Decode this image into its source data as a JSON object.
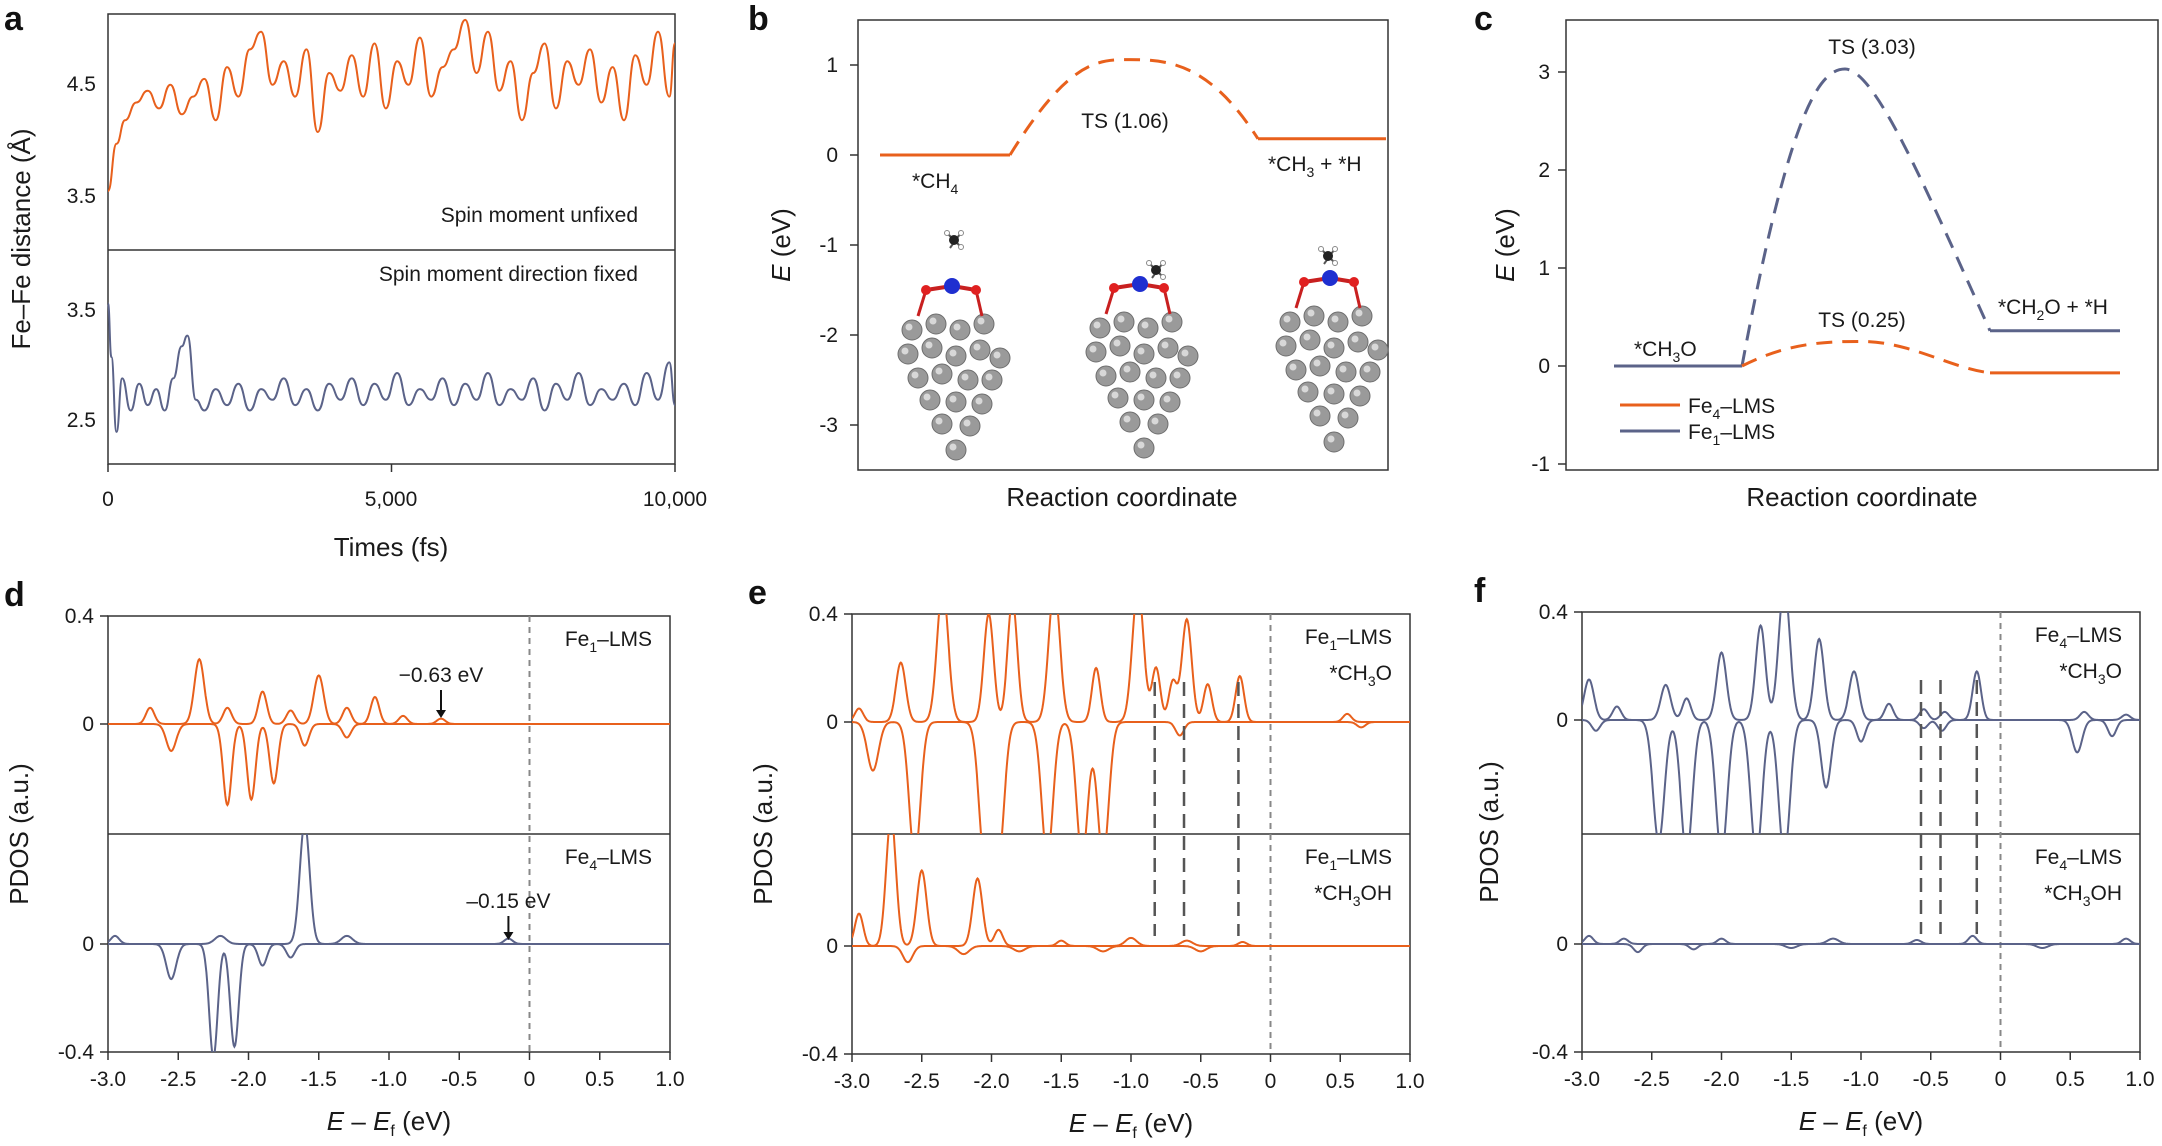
{
  "colors": {
    "fe1": "#E8601C",
    "fe4": "#5B6389",
    "zero_line": "#888888",
    "mark_line": "#555555"
  },
  "chart_data": [
    {
      "id": "a",
      "type": "line",
      "letter": "a",
      "ylabel": "Fe–Fe distance (Å)",
      "xlabel": "Times (fs)",
      "xlim": [
        0,
        10000
      ],
      "x_ticks": [
        "0",
        "5,000",
        "10,000"
      ],
      "top": {
        "label": "Spin moment unfixed",
        "ylim": [
          3.0,
          5.0
        ],
        "y_ticks": [
          "3.5",
          "4.5"
        ],
        "series": {
          "name": "Spin moment unfixed",
          "color": "orange",
          "x": [
            0,
            150,
            300,
            500,
            700,
            900,
            1100,
            1300,
            1500,
            1700,
            1900,
            2100,
            2300,
            2500,
            2700,
            2900,
            3100,
            3300,
            3500,
            3700,
            3900,
            4100,
            4300,
            4500,
            4700,
            4900,
            5100,
            5300,
            5500,
            5700,
            5900,
            6100,
            6300,
            6500,
            6700,
            6900,
            7100,
            7300,
            7500,
            7700,
            7900,
            8100,
            8300,
            8500,
            8700,
            8900,
            9100,
            9300,
            9500,
            9700,
            9900,
            10000
          ],
          "y": [
            3.5,
            3.9,
            4.1,
            4.25,
            4.35,
            4.2,
            4.4,
            4.15,
            4.3,
            4.45,
            4.1,
            4.55,
            4.3,
            4.7,
            4.85,
            4.4,
            4.6,
            4.3,
            4.7,
            4.0,
            4.5,
            4.35,
            4.65,
            4.3,
            4.75,
            4.2,
            4.6,
            4.4,
            4.8,
            4.3,
            4.55,
            4.7,
            4.95,
            4.5,
            4.85,
            4.35,
            4.6,
            4.1,
            4.5,
            4.75,
            4.2,
            4.6,
            4.4,
            4.7,
            4.25,
            4.55,
            4.1,
            4.65,
            4.4,
            4.85,
            4.3,
            4.75
          ]
        }
      },
      "bottom": {
        "label": "Spin moment direction fixed",
        "ylim": [
          2.0,
          4.0
        ],
        "y_ticks": [
          "2.5",
          "3.5"
        ],
        "series": {
          "name": "Spin moment direction fixed",
          "color": "blue",
          "x": [
            0,
            60,
            150,
            250,
            400,
            550,
            700,
            850,
            1000,
            1150,
            1300,
            1400,
            1550,
            1700,
            1900,
            2100,
            2300,
            2500,
            2700,
            2900,
            3100,
            3300,
            3500,
            3700,
            3900,
            4100,
            4300,
            4500,
            4700,
            4900,
            5100,
            5300,
            5500,
            5700,
            5900,
            6100,
            6300,
            6500,
            6700,
            6900,
            7100,
            7300,
            7500,
            7700,
            7900,
            8100,
            8300,
            8500,
            8700,
            8900,
            9100,
            9300,
            9500,
            9700,
            9900,
            10000
          ],
          "y": [
            3.5,
            3.0,
            2.3,
            2.8,
            2.5,
            2.75,
            2.55,
            2.7,
            2.5,
            2.8,
            3.1,
            3.2,
            2.6,
            2.5,
            2.7,
            2.55,
            2.75,
            2.5,
            2.7,
            2.6,
            2.8,
            2.55,
            2.7,
            2.5,
            2.75,
            2.6,
            2.8,
            2.55,
            2.75,
            2.6,
            2.85,
            2.55,
            2.7,
            2.6,
            2.8,
            2.55,
            2.75,
            2.6,
            2.85,
            2.55,
            2.7,
            2.6,
            2.8,
            2.5,
            2.75,
            2.6,
            2.85,
            2.55,
            2.7,
            2.6,
            2.75,
            2.55,
            2.85,
            2.6,
            2.95,
            2.55
          ]
        }
      }
    },
    {
      "id": "b",
      "type": "line",
      "letter": "b",
      "ylabel": "E (eV)",
      "ylabel_var": "E",
      "ylabel_unit": " (eV)",
      "xlabel": "Reaction coordinate",
      "ylim": [
        -3.5,
        1.5
      ],
      "y_ticks": [
        "1",
        "0",
        "-1",
        "-2",
        "-3"
      ],
      "labels": {
        "is": "*CH",
        "is_sub": "4",
        "ts": "TS (1.06)",
        "fs_a": "*CH",
        "fs_sub": "3",
        "fs_b": " + *H"
      },
      "series": [
        {
          "name": "Fe1-LMS",
          "color": "orange",
          "initial": 0,
          "ts": 1.06,
          "final": 0.18
        }
      ]
    },
    {
      "id": "c",
      "type": "line",
      "letter": "c",
      "ylabel": "E (eV)",
      "ylabel_var": "E",
      "ylabel_unit": " (eV)",
      "xlabel": "Reaction coordinate",
      "ylim": [
        -1,
        3.4
      ],
      "y_ticks": [
        "3",
        "2",
        "1",
        "0",
        "-1"
      ],
      "labels": {
        "is_a": "*CH",
        "is_sub": "3",
        "is_b": "O",
        "fs_a": "*CH",
        "fs_sub": "2",
        "fs_b": "O + *H",
        "ts_fe1": "TS (3.03)",
        "ts_fe4": "TS (0.25)"
      },
      "legend": [
        {
          "pre": "Fe",
          "sub": "4",
          "post": "–LMS",
          "color": "orange"
        },
        {
          "pre": "Fe",
          "sub": "1",
          "post": "–LMS",
          "color": "blue"
        }
      ],
      "series": [
        {
          "name": "Fe1-LMS",
          "color": "blue",
          "initial": 0,
          "ts": 3.03,
          "final": 0.36
        },
        {
          "name": "Fe4-LMS",
          "color": "orange",
          "initial": 0,
          "ts": 0.25,
          "final": -0.07
        }
      ]
    },
    {
      "id": "d",
      "type": "line",
      "letter": "d",
      "ylabel": "PDOS (a.u.)",
      "xlabel_var": "E",
      "xlabel_mid": " – ",
      "xlabel_var2": "E",
      "xlabel_sub": "f",
      "xlabel_unit": " (eV)",
      "xlim": [
        -3.0,
        1.0
      ],
      "x_ticks": [
        "-3.0",
        "-2.5",
        "-2.0",
        "-1.5",
        "-1.0",
        "-0.5",
        "0",
        "0.5",
        "1.0"
      ],
      "y_ticks": [
        "0.4",
        "0",
        "0",
        "-0.4"
      ],
      "top": {
        "label_pre": "Fe",
        "label_sub": "1",
        "label_post": "–LMS",
        "annotation": "−0.63 eV",
        "marker_x": -0.63,
        "peaks_up": [
          [
            -2.7,
            0.06,
            0.03
          ],
          [
            -2.35,
            0.24,
            0.035
          ],
          [
            -2.15,
            0.06,
            0.03
          ],
          [
            -1.9,
            0.12,
            0.03
          ],
          [
            -1.7,
            0.05,
            0.03
          ],
          [
            -1.5,
            0.18,
            0.035
          ],
          [
            -1.3,
            0.06,
            0.03
          ],
          [
            -1.1,
            0.1,
            0.03
          ],
          [
            -0.9,
            0.03,
            0.03
          ],
          [
            -0.63,
            0.02,
            0.03
          ]
        ],
        "peaks_down": [
          [
            -2.55,
            0.1,
            0.035
          ],
          [
            -2.15,
            0.3,
            0.03
          ],
          [
            -1.98,
            0.28,
            0.03
          ],
          [
            -1.82,
            0.22,
            0.03
          ],
          [
            -1.6,
            0.08,
            0.03
          ],
          [
            -1.3,
            0.05,
            0.03
          ]
        ]
      },
      "bottom": {
        "label_pre": "Fe",
        "label_sub": "4",
        "label_post": "–LMS",
        "annotation": "–0.15 eV",
        "marker_x": -0.15,
        "peaks_up": [
          [
            -2.95,
            0.03,
            0.03
          ],
          [
            -2.2,
            0.03,
            0.04
          ],
          [
            -1.6,
            0.45,
            0.035
          ],
          [
            -1.3,
            0.03,
            0.04
          ],
          [
            -0.15,
            0.02,
            0.03
          ]
        ],
        "peaks_down": [
          [
            -2.55,
            0.13,
            0.035
          ],
          [
            -2.25,
            0.42,
            0.03
          ],
          [
            -2.1,
            0.38,
            0.03
          ],
          [
            -1.9,
            0.08,
            0.03
          ],
          [
            -1.7,
            0.05,
            0.03
          ]
        ]
      }
    },
    {
      "id": "e",
      "type": "line",
      "letter": "e",
      "ylabel": "PDOS (a.u.)",
      "xlabel_var": "E",
      "xlabel_mid": " – ",
      "xlabel_var2": "E",
      "xlabel_sub": "f",
      "xlabel_unit": " (eV)",
      "xlim": [
        -3.0,
        1.0
      ],
      "x_ticks": [
        "-3.0",
        "-2.5",
        "-2.0",
        "-1.5",
        "-1.0",
        "-0.5",
        "0",
        "0.5",
        "1.0"
      ],
      "y_ticks": [
        "0.4",
        "0",
        "0",
        "-0.4"
      ],
      "dashed_x": [
        -0.83,
        -0.62,
        -0.23
      ],
      "top": {
        "label_pre": "Fe",
        "label_sub": "1",
        "label_post": "–LMS",
        "label2_pre": "*CH",
        "label2_sub": "3",
        "label2_post": "O",
        "peaks_up": [
          [
            -2.95,
            0.05,
            0.03
          ],
          [
            -2.65,
            0.22,
            0.035
          ],
          [
            -2.35,
            0.5,
            0.04
          ],
          [
            -2.02,
            0.4,
            0.035
          ],
          [
            -1.85,
            0.45,
            0.035
          ],
          [
            -1.55,
            0.5,
            0.04
          ],
          [
            -1.25,
            0.2,
            0.03
          ],
          [
            -0.95,
            0.5,
            0.04
          ],
          [
            -0.82,
            0.2,
            0.03
          ],
          [
            -0.7,
            0.15,
            0.03
          ],
          [
            -0.6,
            0.38,
            0.035
          ],
          [
            -0.45,
            0.14,
            0.03
          ],
          [
            -0.22,
            0.17,
            0.03
          ],
          [
            0.55,
            0.03,
            0.03
          ]
        ],
        "peaks_down": [
          [
            -2.85,
            0.18,
            0.04
          ],
          [
            -2.55,
            0.5,
            0.04
          ],
          [
            -2.05,
            0.5,
            0.04
          ],
          [
            -1.95,
            0.5,
            0.04
          ],
          [
            -1.6,
            0.5,
            0.04
          ],
          [
            -1.35,
            0.5,
            0.04
          ],
          [
            -1.2,
            0.5,
            0.04
          ],
          [
            -0.65,
            0.05,
            0.03
          ],
          [
            0.65,
            0.02,
            0.03
          ]
        ]
      },
      "bottom": {
        "label_pre": "Fe",
        "label_sub": "1",
        "label_post": "–LMS",
        "label2_pre": "*CH",
        "label2_sub": "3",
        "label2_post": "OH",
        "peaks_up": [
          [
            -2.95,
            0.12,
            0.03
          ],
          [
            -2.72,
            0.48,
            0.035
          ],
          [
            -2.5,
            0.28,
            0.035
          ],
          [
            -2.1,
            0.25,
            0.035
          ],
          [
            -1.95,
            0.06,
            0.03
          ],
          [
            -1.5,
            0.02,
            0.03
          ],
          [
            -1.0,
            0.03,
            0.04
          ],
          [
            -0.6,
            0.02,
            0.04
          ],
          [
            -0.2,
            0.015,
            0.03
          ]
        ],
        "peaks_down": [
          [
            -2.6,
            0.06,
            0.035
          ],
          [
            -2.2,
            0.03,
            0.04
          ],
          [
            -1.8,
            0.02,
            0.04
          ],
          [
            -1.2,
            0.02,
            0.04
          ],
          [
            -0.5,
            0.02,
            0.04
          ]
        ]
      }
    },
    {
      "id": "f",
      "type": "line",
      "letter": "f",
      "ylabel": "PDOS (a.u.)",
      "xlabel_var": "E",
      "xlabel_mid": " – ",
      "xlabel_var2": "E",
      "xlabel_sub": "f",
      "xlabel_unit": " (eV)",
      "xlim": [
        -3.0,
        1.0
      ],
      "x_ticks": [
        "-3.0",
        "-2.5",
        "-2.0",
        "-1.5",
        "-1.0",
        "-0.5",
        "0",
        "0.5",
        "1.0"
      ],
      "y_ticks": [
        "0.4",
        "0",
        "0",
        "-0.4"
      ],
      "dashed_x": [
        -0.57,
        -0.43,
        -0.17
      ],
      "top": {
        "label_pre": "Fe",
        "label_sub": "4",
        "label_post": "–LMS",
        "label2_pre": "*CH",
        "label2_sub": "3",
        "label2_post": "O",
        "peaks_up": [
          [
            -2.95,
            0.15,
            0.035
          ],
          [
            -2.75,
            0.05,
            0.03
          ],
          [
            -2.4,
            0.13,
            0.035
          ],
          [
            -2.25,
            0.08,
            0.03
          ],
          [
            -2.0,
            0.25,
            0.035
          ],
          [
            -1.72,
            0.35,
            0.035
          ],
          [
            -1.55,
            0.5,
            0.04
          ],
          [
            -1.3,
            0.3,
            0.035
          ],
          [
            -1.05,
            0.18,
            0.035
          ],
          [
            -0.8,
            0.06,
            0.03
          ],
          [
            -0.55,
            0.04,
            0.03
          ],
          [
            -0.4,
            0.03,
            0.03
          ],
          [
            -0.17,
            0.18,
            0.03
          ],
          [
            0.6,
            0.03,
            0.03
          ],
          [
            0.9,
            0.02,
            0.03
          ]
        ],
        "peaks_down": [
          [
            -2.9,
            0.04,
            0.03
          ],
          [
            -2.45,
            0.45,
            0.04
          ],
          [
            -2.25,
            0.5,
            0.04
          ],
          [
            -2.0,
            0.5,
            0.04
          ],
          [
            -1.75,
            0.5,
            0.04
          ],
          [
            -1.55,
            0.5,
            0.04
          ],
          [
            -1.25,
            0.25,
            0.035
          ],
          [
            -1.0,
            0.08,
            0.03
          ],
          [
            -0.55,
            0.03,
            0.03
          ],
          [
            -0.42,
            0.04,
            0.03
          ],
          [
            0.55,
            0.12,
            0.035
          ],
          [
            0.8,
            0.06,
            0.03
          ]
        ]
      },
      "bottom": {
        "label_pre": "Fe",
        "label_sub": "4",
        "label_post": "–LMS",
        "label2_pre": "*CH",
        "label2_sub": "3",
        "label2_post": "OH",
        "peaks_up": [
          [
            -2.95,
            0.03,
            0.03
          ],
          [
            -2.7,
            0.02,
            0.03
          ],
          [
            -2.0,
            0.02,
            0.03
          ],
          [
            -1.2,
            0.02,
            0.04
          ],
          [
            -0.6,
            0.015,
            0.03
          ],
          [
            -0.2,
            0.03,
            0.03
          ],
          [
            0.9,
            0.02,
            0.03
          ]
        ],
        "peaks_down": [
          [
            -2.6,
            0.03,
            0.03
          ],
          [
            -2.2,
            0.02,
            0.03
          ],
          [
            -1.5,
            0.015,
            0.04
          ],
          [
            0.3,
            0.015,
            0.04
          ]
        ]
      }
    }
  ]
}
